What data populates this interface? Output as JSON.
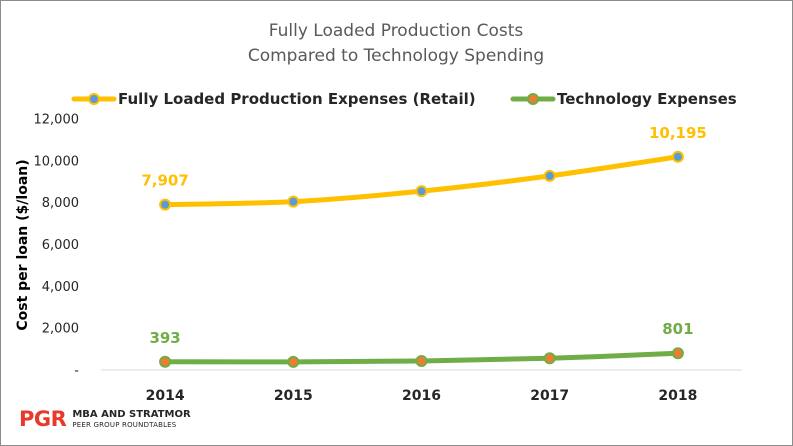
{
  "chart_data": {
    "type": "line",
    "title": [
      "Fully Loaded Production Costs",
      "Compared to Technology Spending"
    ],
    "ylabel": "Cost per loan ($/loan)",
    "xlabel": "",
    "categories": [
      "2014",
      "2015",
      "2016",
      "2017",
      "2018"
    ],
    "ylim": [
      0,
      12000
    ],
    "yticks": [
      0,
      2000,
      4000,
      6000,
      8000,
      10000,
      12000
    ],
    "ytick_labels": [
      "-",
      "2,000",
      "4,000",
      "6,000",
      "8,000",
      "10,000",
      "12,000"
    ],
    "grid": false,
    "legend_position": "top",
    "series": [
      {
        "name": "Fully Loaded Production Expenses (Retail)",
        "values": [
          7907,
          8050,
          8550,
          9280,
          10195
        ],
        "line_color": "#ffc000",
        "marker_fill": "#5b9bd5",
        "label_color": "#ffc000",
        "data_labels": [
          {
            "index": 0,
            "text": "7,907"
          },
          {
            "index": 4,
            "text": "10,195"
          }
        ]
      },
      {
        "name": "Technology Expenses",
        "values": [
          393,
          390,
          430,
          560,
          801
        ],
        "line_color": "#70ad47",
        "marker_fill": "#ed7d31",
        "label_color": "#70ad47",
        "data_labels": [
          {
            "index": 0,
            "text": "393"
          },
          {
            "index": 4,
            "text": "801"
          }
        ]
      }
    ]
  },
  "logo": {
    "mark": "PGR",
    "line1": "MBA AND STRATMOR",
    "line2": "PEER GROUP ROUNDTABLES"
  }
}
